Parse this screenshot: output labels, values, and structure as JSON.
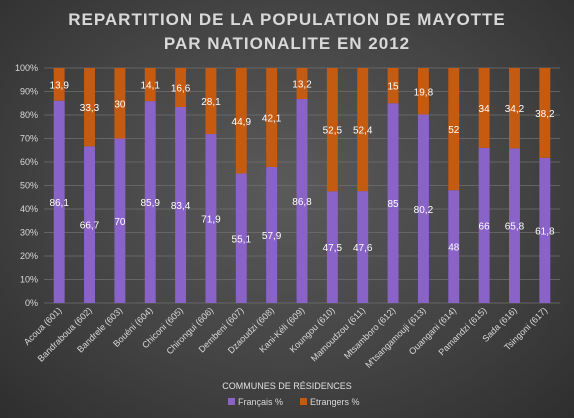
{
  "chart_data": {
    "type": "bar",
    "stacked": true,
    "title": "REPARTITION  DE LA POPULATION  DE MAYOTTE",
    "subtitle": "PAR NATIONALITE  EN 2012",
    "xlabel": "COMMUNES DE RÉSIDENCES",
    "ylabel": "",
    "ylim": [
      0,
      100
    ],
    "y_ticks": [
      "0%",
      "10%",
      "20%",
      "30%",
      "40%",
      "50%",
      "60%",
      "70%",
      "80%",
      "90%",
      "100%"
    ],
    "grid": true,
    "legend": "bottom",
    "categories": [
      "Acoua (601)",
      "Bandraboua (602)",
      "Bandrele (603)",
      "Bouéni (604)",
      "Chiconi (605)",
      "Chirongui (606)",
      "Dembeni (607)",
      "Dzaoudzi (608)",
      "Kani-Kéli (609)",
      "Koungou (610)",
      "Mamoudzou (611)",
      "Mtsamboro (612)",
      "M'tsangamouji (613)",
      "Ouangani (614)",
      "Pamandzi (615)",
      "Sada (616)",
      "Tsingoni (617)"
    ],
    "series": [
      {
        "name": "Français %",
        "color": "#8a63c9",
        "values": [
          86.1,
          66.7,
          70,
          85.9,
          83.4,
          71.9,
          55.1,
          57.9,
          86.8,
          47.5,
          47.6,
          85,
          80.2,
          48,
          66,
          65.8,
          61.8
        ],
        "labels": [
          "86,1",
          "66,7",
          "70",
          "85,9",
          "83,4",
          "71,9",
          "55,1",
          "57,9",
          "86,8",
          "47,5",
          "47,6",
          "85",
          "80,2",
          "48",
          "66",
          "65,8",
          "61,8"
        ]
      },
      {
        "name": "Etrangers %",
        "color": "#c55a11",
        "values": [
          13.9,
          33.3,
          30,
          14.1,
          16.6,
          28.1,
          44.9,
          42.1,
          13.2,
          52.5,
          52.4,
          15,
          19.8,
          52,
          34,
          34.2,
          38.2
        ],
        "labels": [
          "13,9",
          "33,3",
          "30",
          "14,1",
          "16,6",
          "28,1",
          "44,9",
          "42,1",
          "13,2",
          "52,5",
          "52,4",
          "15",
          "19,8",
          "52",
          "34",
          "34,2",
          "38,2"
        ]
      }
    ]
  }
}
